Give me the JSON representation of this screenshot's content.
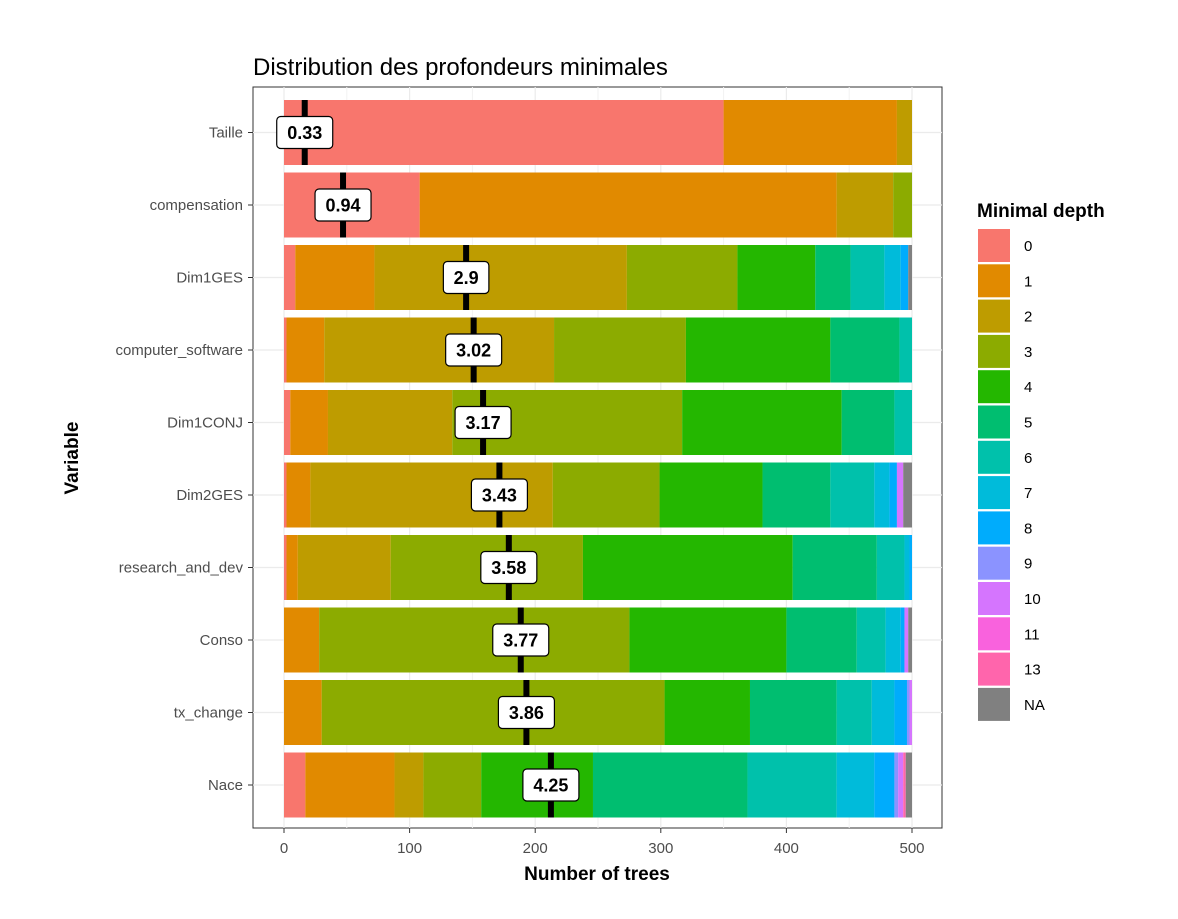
{
  "chart_data": {
    "type": "bar",
    "orientation": "horizontal",
    "stacked": true,
    "title": "Distribution des profondeurs minimales",
    "xlabel": "Number of trees",
    "ylabel": "Variable",
    "xlim": [
      0,
      500
    ],
    "xticks": [
      "0",
      "100",
      "200",
      "300",
      "400",
      "500"
    ],
    "grid": true,
    "legend": {
      "title": "Minimal depth",
      "position": "right"
    },
    "depth_levels": [
      {
        "label": "0",
        "color": "#F8766D"
      },
      {
        "label": "1",
        "color": "#E18A00"
      },
      {
        "label": "2",
        "color": "#BE9C00"
      },
      {
        "label": "3",
        "color": "#8CAB00"
      },
      {
        "label": "4",
        "color": "#24B700"
      },
      {
        "label": "5",
        "color": "#00BE70"
      },
      {
        "label": "6",
        "color": "#00C1AB"
      },
      {
        "label": "7",
        "color": "#00BBDA"
      },
      {
        "label": "8",
        "color": "#00ACFC"
      },
      {
        "label": "9",
        "color": "#8B93FF"
      },
      {
        "label": "10",
        "color": "#D575FE"
      },
      {
        "label": "11",
        "color": "#F962DD"
      },
      {
        "label": "13",
        "color": "#FF65AC"
      },
      {
        "label": "NA",
        "color": "#808080"
      }
    ],
    "variables": [
      {
        "name": "Taille",
        "mean_label": "0.33",
        "mean": 0.33,
        "counts": [
          350,
          138,
          12,
          0,
          0,
          0,
          0,
          0,
          0,
          0,
          0,
          0,
          0,
          0
        ]
      },
      {
        "name": "compensation",
        "mean_label": "0.94",
        "mean": 0.94,
        "counts": [
          108,
          332,
          45,
          15,
          0,
          0,
          0,
          0,
          0,
          0,
          0,
          0,
          0,
          0
        ]
      },
      {
        "name": "Dim1GES",
        "mean_label": "2.9",
        "mean": 2.9,
        "counts": [
          9,
          63,
          201,
          88,
          62,
          28,
          27,
          13,
          6,
          0,
          0,
          0,
          0,
          3
        ]
      },
      {
        "name": "computer_software",
        "mean_label": "3.02",
        "mean": 3.02,
        "counts": [
          2,
          30,
          183,
          105,
          115,
          55,
          10,
          0,
          0,
          0,
          0,
          0,
          0,
          0
        ]
      },
      {
        "name": "Dim1CONJ",
        "mean_label": "3.17",
        "mean": 3.17,
        "counts": [
          5,
          30,
          99,
          183,
          127,
          42,
          14,
          0,
          0,
          0,
          0,
          0,
          0,
          0
        ]
      },
      {
        "name": "Dim2GES",
        "mean_label": "3.43",
        "mean": 3.43,
        "counts": [
          2,
          19,
          193,
          85,
          82,
          54,
          35,
          12,
          6,
          0,
          5,
          0,
          0,
          7
        ]
      },
      {
        "name": "research_and_dev",
        "mean_label": "3.58",
        "mean": 3.58,
        "counts": [
          2,
          9,
          74,
          153,
          167,
          67,
          22,
          4,
          2,
          0,
          0,
          0,
          0,
          0
        ]
      },
      {
        "name": "Conso",
        "mean_label": "3.77",
        "mean": 3.77,
        "counts": [
          0,
          28,
          0,
          247,
          125,
          56,
          23,
          12,
          3,
          0,
          3,
          0,
          0,
          3
        ]
      },
      {
        "name": "tx_change",
        "mean_label": "3.86",
        "mean": 3.86,
        "counts": [
          0,
          30,
          0,
          273,
          68,
          69,
          28,
          18,
          10,
          2,
          2,
          0,
          0,
          0
        ]
      },
      {
        "name": "Nace",
        "mean_label": "4.25",
        "mean": 4.25,
        "counts": [
          17,
          71,
          23,
          46,
          89,
          123,
          71,
          30,
          16,
          3,
          4,
          0,
          2,
          5
        ]
      }
    ]
  }
}
